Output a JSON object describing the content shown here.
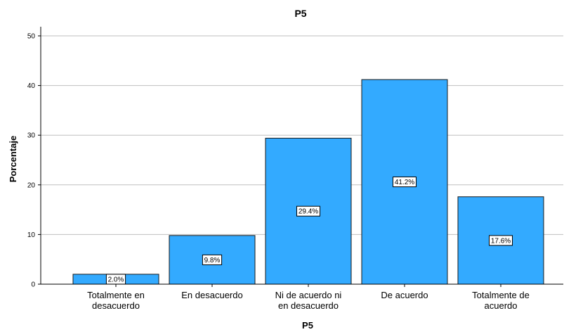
{
  "chart_data": {
    "type": "bar",
    "title": "P5",
    "xlabel": "P5",
    "ylabel": "Porcentaje",
    "categories": [
      [
        "Totalmente en",
        "desacuerdo"
      ],
      [
        "En desacuerdo"
      ],
      [
        "Ni de acuerdo ni",
        "en desacuerdo"
      ],
      [
        "De acuerdo"
      ],
      [
        "Totalmente de",
        "acuerdo"
      ]
    ],
    "values": [
      2.0,
      9.8,
      29.4,
      41.2,
      17.6
    ],
    "data_labels": [
      "2.0%",
      "9.8%",
      "29.4%",
      "41.2%",
      "17.6%"
    ],
    "ylim": [
      0,
      50
    ],
    "yticks": [
      0,
      10,
      20,
      30,
      40,
      50
    ],
    "grid": true,
    "legend": "none",
    "colors": {
      "bar_fill": "#33aaff",
      "bar_stroke": "#1a1a1a",
      "grid": "#bfbfbf",
      "axis": "#000000"
    }
  }
}
